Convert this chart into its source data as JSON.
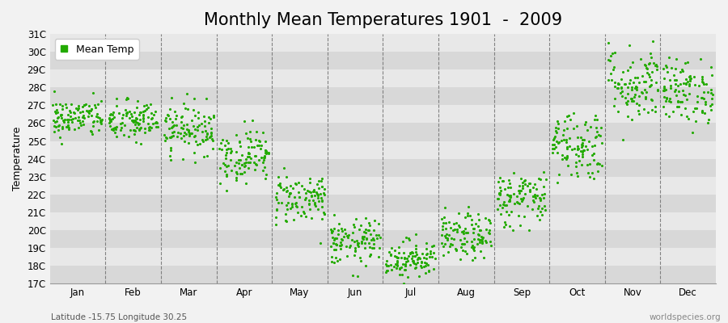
{
  "title": "Monthly Mean Temperatures 1901  -  2009",
  "ylabel": "Temperature",
  "xlabel_labels": [
    "Jan",
    "Feb",
    "Mar",
    "Apr",
    "May",
    "Jun",
    "Jul",
    "Aug",
    "Sep",
    "Oct",
    "Nov",
    "Dec"
  ],
  "ytick_labels": [
    "17C",
    "18C",
    "19C",
    "20C",
    "21C",
    "22C",
    "23C",
    "24C",
    "25C",
    "26C",
    "27C",
    "28C",
    "29C",
    "30C",
    "31C"
  ],
  "ytick_values": [
    17,
    18,
    19,
    20,
    21,
    22,
    23,
    24,
    25,
    26,
    27,
    28,
    29,
    30,
    31
  ],
  "ylim": [
    17,
    31
  ],
  "dot_color": "#22aa00",
  "dot_size": 5,
  "background_color": "#f2f2f2",
  "plot_bg_color": "#e8e8e8",
  "stripe_color": "#d8d8d8",
  "legend_label": "Mean Temp",
  "footer_left": "Latitude -15.75 Longitude 30.25",
  "footer_right": "worldspecies.org",
  "title_fontsize": 15,
  "label_fontsize": 9,
  "tick_fontsize": 8.5,
  "monthly_means": [
    26.3,
    26.1,
    25.7,
    24.2,
    21.8,
    19.3,
    18.4,
    19.6,
    21.8,
    24.8,
    28.2,
    27.8
  ],
  "monthly_stds": [
    0.55,
    0.6,
    0.7,
    0.75,
    0.72,
    0.65,
    0.55,
    0.65,
    0.8,
    1.0,
    1.1,
    0.9
  ],
  "years": 109,
  "months_per_year": 12
}
